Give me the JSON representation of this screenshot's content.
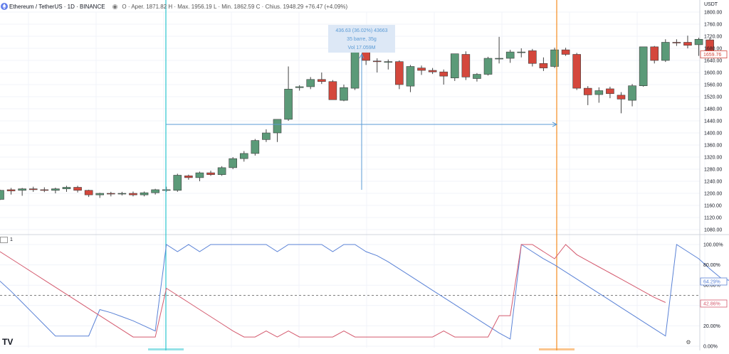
{
  "header": {
    "symbol": "Ethereum / TetherUS · 1D · BINANCE",
    "ohlc": "O · Aper. 1871.82  H · Max. 1956.19  L · Min. 1862.59  C · Chius. 1948.29  +76.47 (+4.09%)"
  },
  "price_axis": {
    "currency": "USDT",
    "ticks": [
      "1800.00",
      "1760.00",
      "1720.00",
      "1680.00",
      "1640.00",
      "1600.00",
      "1560.00",
      "1520.00",
      "1480.00",
      "1440.00",
      "1400.00",
      "1360.00",
      "1320.00",
      "1280.00",
      "1240.00",
      "1200.00",
      "1160.00",
      "1120.00",
      "1080.00"
    ],
    "last_price_label": "1659.76",
    "last_price": 1659.76
  },
  "indicator": {
    "pane_label": "1",
    "ticks": [
      "100.00%",
      "80.00%",
      "60.00%",
      "20.00%",
      "0.00%"
    ],
    "blue_value_label": "64.29%",
    "red_value_label": "42.86%",
    "dashed_level": 50
  },
  "measure": {
    "line1": "436.63 (36.02%) 43663",
    "line2": "35 barre, 35g",
    "line3": "Vol 17.059M"
  },
  "colors": {
    "up": "#5b9a78",
    "down": "#d4473c",
    "blue_line": "#5a82d6",
    "red_line": "#d45a6e",
    "cyan_vline": "#2bc5cf",
    "orange_vline": "#f58b1e",
    "measure": "#5b9bd5"
  },
  "chart_data": [
    {
      "type": "candlestick",
      "title": "Ethereum / TetherUS · 1D · BINANCE",
      "ylabel": "USDT",
      "ylim": [
        1060,
        1820
      ],
      "candles": [
        [
          1180,
          1212,
          1178,
          1210
        ],
        [
          1212,
          1218,
          1196,
          1208
        ],
        [
          1210,
          1218,
          1192,
          1215
        ],
        [
          1215,
          1222,
          1205,
          1212
        ],
        [
          1212,
          1220,
          1204,
          1210
        ],
        [
          1210,
          1219,
          1200,
          1215
        ],
        [
          1215,
          1225,
          1205,
          1220
        ],
        [
          1220,
          1225,
          1203,
          1210
        ],
        [
          1210,
          1212,
          1188,
          1195
        ],
        [
          1195,
          1202,
          1185,
          1200
        ],
        [
          1200,
          1205,
          1190,
          1198
        ],
        [
          1198,
          1205,
          1193,
          1200
        ],
        [
          1200,
          1206,
          1190,
          1195
        ],
        [
          1195,
          1206,
          1190,
          1202
        ],
        [
          1202,
          1215,
          1196,
          1212
        ],
        [
          1212,
          1222,
          1205,
          1212
        ],
        [
          1210,
          1265,
          1205,
          1260
        ],
        [
          1258,
          1262,
          1245,
          1252
        ],
        [
          1252,
          1272,
          1240,
          1268
        ],
        [
          1268,
          1275,
          1258,
          1262
        ],
        [
          1262,
          1290,
          1258,
          1285
        ],
        [
          1285,
          1320,
          1280,
          1315
        ],
        [
          1315,
          1340,
          1305,
          1332
        ],
        [
          1332,
          1380,
          1325,
          1375
        ],
        [
          1378,
          1412,
          1370,
          1400
        ],
        [
          1400,
          1440,
          1370,
          1445
        ],
        [
          1445,
          1620,
          1440,
          1545
        ],
        [
          1550,
          1558,
          1540,
          1553
        ],
        [
          1553,
          1585,
          1545,
          1577
        ],
        [
          1577,
          1600,
          1562,
          1570
        ],
        [
          1570,
          1575,
          1515,
          1510
        ],
        [
          1508,
          1560,
          1505,
          1550
        ],
        [
          1548,
          1680,
          1542,
          1667
        ],
        [
          1667,
          1672,
          1625,
          1640
        ],
        [
          1638,
          1647,
          1600,
          1636
        ],
        [
          1636,
          1643,
          1610,
          1636
        ],
        [
          1636,
          1640,
          1545,
          1560
        ],
        [
          1555,
          1625,
          1535,
          1620
        ],
        [
          1615,
          1623,
          1592,
          1607
        ],
        [
          1607,
          1615,
          1595,
          1602
        ],
        [
          1602,
          1610,
          1560,
          1588
        ],
        [
          1582,
          1660,
          1572,
          1662
        ],
        [
          1660,
          1670,
          1575,
          1585
        ],
        [
          1580,
          1598,
          1570,
          1594
        ],
        [
          1594,
          1652,
          1590,
          1647
        ],
        [
          1647,
          1718,
          1630,
          1647
        ],
        [
          1647,
          1675,
          1632,
          1668
        ],
        [
          1668,
          1680,
          1650,
          1668
        ],
        [
          1672,
          1678,
          1620,
          1630
        ],
        [
          1630,
          1650,
          1605,
          1615
        ],
        [
          1620,
          1682,
          1615,
          1675
        ],
        [
          1675,
          1682,
          1655,
          1660
        ],
        [
          1660,
          1665,
          1542,
          1548
        ],
        [
          1548,
          1555,
          1492,
          1526
        ],
        [
          1527,
          1551,
          1500,
          1540
        ],
        [
          1546,
          1553,
          1515,
          1530
        ],
        [
          1525,
          1535,
          1465,
          1512
        ],
        [
          1508,
          1562,
          1488,
          1556
        ],
        [
          1556,
          1682,
          1553,
          1685
        ],
        [
          1685,
          1688,
          1630,
          1640
        ],
        [
          1640,
          1710,
          1635,
          1700
        ],
        [
          1700,
          1710,
          1688,
          1698
        ],
        [
          1700,
          1722,
          1680,
          1690
        ],
        [
          1692,
          1715,
          1655,
          1710
        ],
        [
          1708,
          1716,
          1650,
          1660
        ]
      ],
      "oscillator": {
        "ylim": [
          0,
          100
        ],
        "blue_series": [
          64,
          54,
          43,
          32,
          21,
          10,
          10,
          10,
          10,
          36,
          33,
          29,
          25,
          20,
          15,
          100,
          93,
          100,
          93,
          100,
          100,
          100,
          100,
          100,
          100,
          93,
          100,
          100,
          100,
          100,
          93,
          100,
          100,
          93,
          89,
          83,
          76,
          69,
          62,
          55,
          48,
          41,
          34,
          27,
          20,
          13,
          7,
          100,
          93,
          86,
          80,
          73,
          66,
          59,
          52,
          45,
          38,
          31,
          24,
          17,
          10,
          100,
          93,
          86,
          76,
          67,
          64
        ],
        "red_series": [
          93,
          86,
          79,
          72,
          65,
          58,
          51,
          44,
          37,
          30,
          23,
          16,
          9,
          9,
          9,
          57,
          50,
          43,
          36,
          29,
          22,
          15,
          9,
          9,
          15,
          9,
          15,
          9,
          9,
          9,
          9,
          15,
          9,
          9,
          9,
          9,
          9,
          9,
          9,
          9,
          15,
          9,
          9,
          9,
          9,
          30,
          30,
          100,
          100,
          93,
          86,
          100,
          90,
          84,
          78,
          72,
          66,
          60,
          54,
          48,
          43
        ]
      }
    }
  ]
}
